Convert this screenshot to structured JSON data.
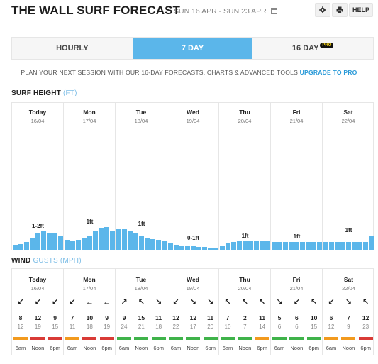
{
  "header": {
    "title": "THE WALL SURF FORECAST",
    "date_range": "SUN 16 APR - SUN 23 APR",
    "help_label": "HELP",
    "icons": [
      "calendar-icon",
      "gear-icon",
      "print-icon"
    ]
  },
  "tabs": [
    {
      "label": "HOURLY",
      "active": false
    },
    {
      "label": "7 DAY",
      "active": true
    },
    {
      "label": "16 DAY",
      "active": false,
      "badge": "PRO"
    }
  ],
  "promo": {
    "text": "PLAN YOUR NEXT SESSION WITH OUR 16-DAY FORECASTS, CHARTS & ADVANCED TOOLS",
    "link": "UPGRADE TO PRO"
  },
  "surf": {
    "title": "SURF HEIGHT",
    "unit": "(FT)",
    "days": [
      {
        "name": "Today",
        "date": "16/04",
        "label": "1-2ft"
      },
      {
        "name": "Mon",
        "date": "17/04",
        "label": "1ft"
      },
      {
        "name": "Tue",
        "date": "18/04",
        "label": "1ft"
      },
      {
        "name": "Wed",
        "date": "19/04",
        "label": "0-1ft"
      },
      {
        "name": "Thu",
        "date": "20/04",
        "label": "1ft"
      },
      {
        "name": "Fri",
        "date": "21/04",
        "label": "1ft"
      },
      {
        "name": "Sat",
        "date": "22/04",
        "label": "1ft"
      }
    ],
    "bar_color": "#5bb6ea"
  },
  "chart_data": {
    "type": "bar",
    "title": "SURF HEIGHT (FT)",
    "categories": [
      "Today",
      "Mon",
      "Tue",
      "Wed",
      "Thu",
      "Fri",
      "Sat"
    ],
    "labels": [
      "1-2ft",
      "1ft",
      "1ft",
      "0-1ft",
      "1ft",
      "1ft",
      "1ft"
    ],
    "values": [
      [
        0.28,
        0.3,
        0.4,
        0.58,
        0.82,
        0.9,
        0.84,
        0.8,
        0.72
      ],
      [
        0.52,
        0.45,
        0.52,
        0.62,
        0.7,
        0.92,
        1.05,
        1.12,
        0.92
      ],
      [
        1.0,
        1.02,
        0.9,
        0.8,
        0.68,
        0.58,
        0.55,
        0.52,
        0.45
      ],
      [
        0.35,
        0.28,
        0.24,
        0.22,
        0.2,
        0.18,
        0.18,
        0.15,
        0.15
      ],
      [
        0.25,
        0.35,
        0.42,
        0.45,
        0.45,
        0.45,
        0.45,
        0.45,
        0.45
      ],
      [
        0.42,
        0.42,
        0.42,
        0.42,
        0.42,
        0.42,
        0.42,
        0.42,
        0.42
      ],
      [
        0.4,
        0.4,
        0.4,
        0.4,
        0.4,
        0.4,
        0.4,
        0.4,
        0.72
      ]
    ],
    "ylim": [
      0,
      7
    ]
  },
  "wind": {
    "title": "WIND",
    "unit": "GUSTS (MPH)",
    "times": [
      "6am",
      "Noon",
      "6pm"
    ],
    "days": [
      {
        "name": "Today",
        "date": "16/04",
        "arrows": [
          "↙",
          "↙",
          "↙"
        ],
        "speeds": [
          "8",
          "12",
          "9"
        ],
        "gusts": [
          "12",
          "19",
          "15"
        ],
        "colors": [
          "#f29a1e",
          "#d93b36",
          "#d93b36"
        ]
      },
      {
        "name": "Mon",
        "date": "17/04",
        "arrows": [
          "↙",
          "←",
          "←"
        ],
        "speeds": [
          "7",
          "10",
          "9"
        ],
        "gusts": [
          "11",
          "18",
          "19"
        ],
        "colors": [
          "#f29a1e",
          "#d93b36",
          "#d93b36"
        ]
      },
      {
        "name": "Tue",
        "date": "18/04",
        "arrows": [
          "↗",
          "↖",
          "↘"
        ],
        "speeds": [
          "9",
          "15",
          "11"
        ],
        "gusts": [
          "24",
          "21",
          "18"
        ],
        "colors": [
          "#3fb34a",
          "#3fb34a",
          "#3fb34a"
        ]
      },
      {
        "name": "Wed",
        "date": "19/04",
        "arrows": [
          "↙",
          "↘",
          "↘"
        ],
        "speeds": [
          "12",
          "12",
          "11"
        ],
        "gusts": [
          "22",
          "17",
          "20"
        ],
        "colors": [
          "#3fb34a",
          "#3fb34a",
          "#3fb34a"
        ]
      },
      {
        "name": "Thu",
        "date": "20/04",
        "arrows": [
          "↖",
          "↖",
          "↖"
        ],
        "speeds": [
          "7",
          "2",
          "11"
        ],
        "gusts": [
          "10",
          "7",
          "14"
        ],
        "colors": [
          "#3fb34a",
          "#3fb34a",
          "#f29a1e"
        ]
      },
      {
        "name": "Fri",
        "date": "21/04",
        "arrows": [
          "↘",
          "↙",
          "↖"
        ],
        "speeds": [
          "5",
          "6",
          "10"
        ],
        "gusts": [
          "6",
          "6",
          "15"
        ],
        "colors": [
          "#3fb34a",
          "#3fb34a",
          "#3fb34a"
        ]
      },
      {
        "name": "Sat",
        "date": "22/04",
        "arrows": [
          "↙",
          "↘",
          "↖"
        ],
        "speeds": [
          "6",
          "7",
          "12"
        ],
        "gusts": [
          "12",
          "9",
          "23"
        ],
        "colors": [
          "#f29a1e",
          "#f29a1e",
          "#d93b36"
        ]
      }
    ]
  }
}
